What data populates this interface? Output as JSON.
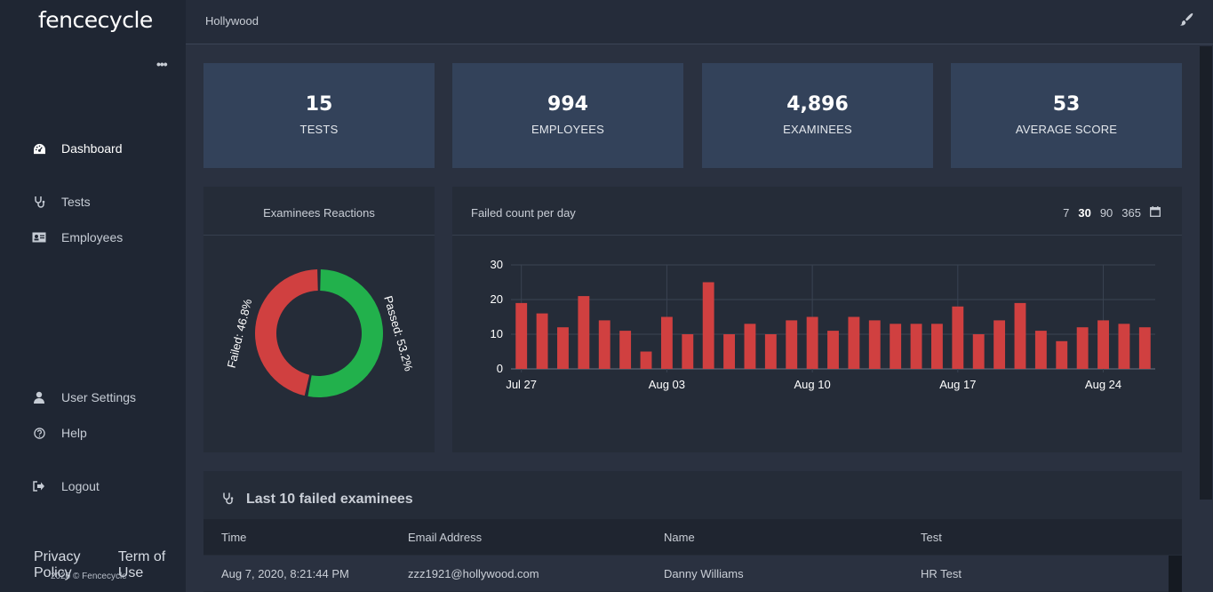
{
  "app": {
    "logo": "fencecycle",
    "menu_dots": "•••"
  },
  "sidebar": {
    "items": [
      {
        "label": "Dashboard",
        "icon": "dashboard-gauge-icon",
        "active": true
      },
      {
        "label": "Tests",
        "icon": "stethoscope-icon"
      },
      {
        "label": "Employees",
        "icon": "id-card-icon"
      },
      {
        "label": "User Settings",
        "icon": "user-icon"
      },
      {
        "label": "Help",
        "icon": "question-circle-icon"
      },
      {
        "label": "Logout",
        "icon": "sign-out-icon"
      }
    ],
    "footer": {
      "privacy": "Privacy Policy",
      "terms": "Term of Use",
      "copyright": "2020 © Fencecycle"
    }
  },
  "header": {
    "breadcrumb": "Hollywood",
    "theme_icon": "paint-brush-icon"
  },
  "stats": [
    {
      "value": "15",
      "label": "TESTS"
    },
    {
      "value": "994",
      "label": "EMPLOYEES"
    },
    {
      "value": "4,896",
      "label": "EXAMINEES"
    },
    {
      "value": "53",
      "label": "AVERAGE SCORE"
    }
  ],
  "reactions": {
    "title": "Examinees Reactions",
    "failed_label": "Failed: 46.8%",
    "passed_label": "Passed: 53.2%"
  },
  "failed_chart": {
    "title": "Failed count per day",
    "ranges": [
      "7",
      "30",
      "90",
      "365"
    ],
    "selected_range": "30",
    "calendar_icon": "calendar-icon"
  },
  "chart_data": [
    {
      "type": "pie",
      "labels": [
        "Failed",
        "Passed"
      ],
      "values": [
        46.8,
        53.2
      ],
      "colors": [
        "#d04040",
        "#22b14c"
      ]
    },
    {
      "type": "bar",
      "title": "Failed count per day",
      "x": [
        "Jul 27",
        "Jul 28",
        "Jul 29",
        "Jul 30",
        "Jul 31",
        "Aug 01",
        "Aug 02",
        "Aug 03",
        "Aug 04",
        "Aug 05",
        "Aug 06",
        "Aug 07",
        "Aug 08",
        "Aug 09",
        "Aug 10",
        "Aug 11",
        "Aug 12",
        "Aug 13",
        "Aug 14",
        "Aug 15",
        "Aug 16",
        "Aug 17",
        "Aug 18",
        "Aug 19",
        "Aug 20",
        "Aug 21",
        "Aug 22",
        "Aug 23",
        "Aug 24",
        "Aug 25",
        "Aug 26"
      ],
      "values": [
        19,
        16,
        12,
        21,
        14,
        11,
        5,
        15,
        10,
        25,
        10,
        13,
        10,
        14,
        15,
        11,
        15,
        14,
        13,
        13,
        13,
        18,
        10,
        14,
        19,
        11,
        8,
        12,
        14,
        13,
        12
      ],
      "tick_labels": [
        "Jul 27",
        "Aug 03",
        "Aug 10",
        "Aug 17",
        "Aug 24"
      ],
      "y_ticks": [
        "0",
        "10",
        "20",
        "30"
      ],
      "ylim": [
        0,
        30
      ],
      "color": "#d04040",
      "grid": true
    }
  ],
  "failed_table": {
    "title": "Last 10 failed examinees",
    "icon": "stethoscope-icon",
    "columns": [
      "Time",
      "Email Address",
      "Name",
      "Test"
    ],
    "rows": [
      [
        "Aug 7, 2020, 8:21:44 PM",
        "zzz1921@hollywood.com",
        "Danny Williams",
        "HR Test"
      ]
    ]
  }
}
